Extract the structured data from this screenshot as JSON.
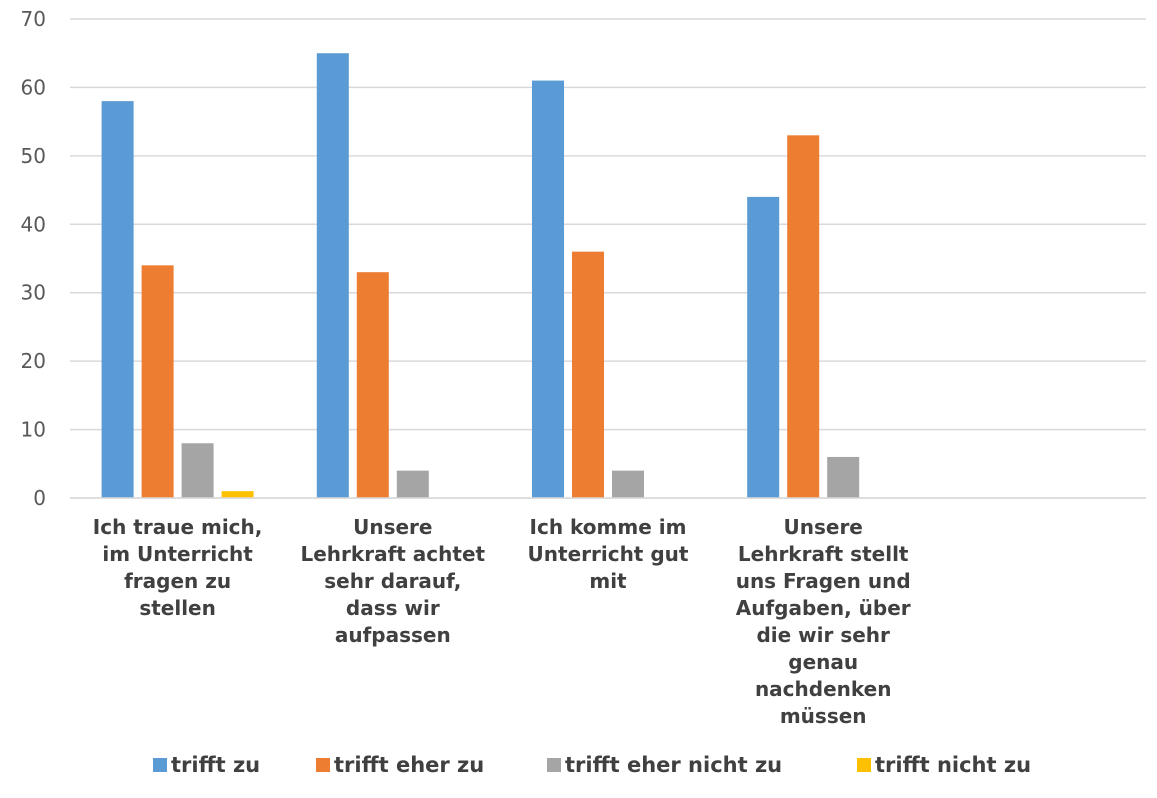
{
  "chart_data": {
    "type": "bar",
    "title": "",
    "xlabel": "",
    "ylabel": "",
    "ylim": [
      0,
      70
    ],
    "yticks": [
      0,
      10,
      20,
      30,
      40,
      50,
      60,
      70
    ],
    "grid": true,
    "legend_position": "bottom",
    "categories": [
      [
        "Ich traue mich,",
        "im Unterricht",
        "fragen zu",
        "stellen"
      ],
      [
        "Unsere",
        "Lehrkraft achtet",
        "sehr darauf,",
        "dass wir",
        "aufpassen"
      ],
      [
        "Ich komme im",
        "Unterricht gut",
        "mit"
      ],
      [
        "Unsere",
        "Lehrkraft stellt",
        "uns Fragen und",
        "Aufgaben, über",
        "die wir sehr",
        "genau",
        "nachdenken",
        "müssen"
      ],
      []
    ],
    "series": [
      {
        "name": "trifft zu",
        "color": "#5B9BD5",
        "values": [
          58,
          65,
          61,
          44,
          null
        ]
      },
      {
        "name": "trifft eher zu",
        "color": "#ED7D31",
        "values": [
          34,
          33,
          36,
          53,
          null
        ]
      },
      {
        "name": "trifft eher nicht zu",
        "color": "#A5A5A5",
        "values": [
          8,
          4,
          4,
          6,
          null
        ]
      },
      {
        "name": "trifft nicht zu",
        "color": "#FFC000",
        "values": [
          1,
          0,
          0,
          0,
          null
        ]
      }
    ]
  }
}
